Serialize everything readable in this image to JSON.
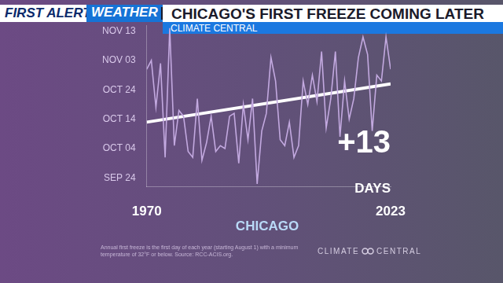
{
  "header": {
    "brand": "FIRST ALERT",
    "brand2": "WEATHER",
    "subtitle": "CLIMATE CENTRAL"
  },
  "chart_data": {
    "type": "line",
    "title": "CHICAGO'S FIRST FREEZE COMING LATER",
    "x_label": "CHICAGO",
    "x": [
      1970,
      1971,
      1972,
      1973,
      1974,
      1975,
      1976,
      1977,
      1978,
      1979,
      1980,
      1981,
      1982,
      1983,
      1984,
      1985,
      1986,
      1987,
      1988,
      1989,
      1990,
      1991,
      1992,
      1993,
      1994,
      1995,
      1996,
      1997,
      1998,
      1999,
      2000,
      2001,
      2002,
      2003,
      2004,
      2005,
      2006,
      2007,
      2008,
      2009,
      2010,
      2011,
      2012,
      2013,
      2014,
      2015,
      2016,
      2017,
      2018,
      2019,
      2020,
      2021,
      2022,
      2023
    ],
    "values": [
      304,
      307,
      291,
      306,
      274,
      318,
      278,
      290,
      288,
      276,
      274,
      294,
      273,
      279,
      288,
      276,
      278,
      277,
      288,
      289,
      272,
      292,
      280,
      294,
      265,
      283,
      289,
      308,
      300,
      280,
      278,
      286,
      274,
      278,
      300,
      292,
      302,
      293,
      310,
      284,
      294,
      310,
      281,
      300,
      287,
      294,
      308,
      315,
      309,
      283,
      302,
      300,
      315,
      304
    ],
    "color": "#c3a9e0",
    "trend_line": {
      "x": [
        1970,
        2023
      ],
      "values": [
        286,
        299
      ],
      "color": "#ffffff"
    },
    "annotation": {
      "text": "+13",
      "subtext": "DAYS"
    },
    "xlim": [
      1970,
      2023
    ],
    "xticks": [
      1970,
      2023
    ],
    "ylim": [
      264,
      319
    ],
    "yticks": [
      {
        "value": 267,
        "label": "SEP 24"
      },
      {
        "value": 277,
        "label": "OCT 04"
      },
      {
        "value": 287,
        "label": "OCT 14"
      },
      {
        "value": 297,
        "label": "OCT 24"
      },
      {
        "value": 307,
        "label": "NOV 03"
      },
      {
        "value": 317,
        "label": "NOV 13"
      }
    ],
    "grid": false
  },
  "footer": {
    "note": "Annual first freeze is the first day of each year (starting August 1) with a minimum temperature of 32°F or below. Source: RCC-ACIS.org.",
    "logo": "CLIMATE CENTRAL"
  }
}
